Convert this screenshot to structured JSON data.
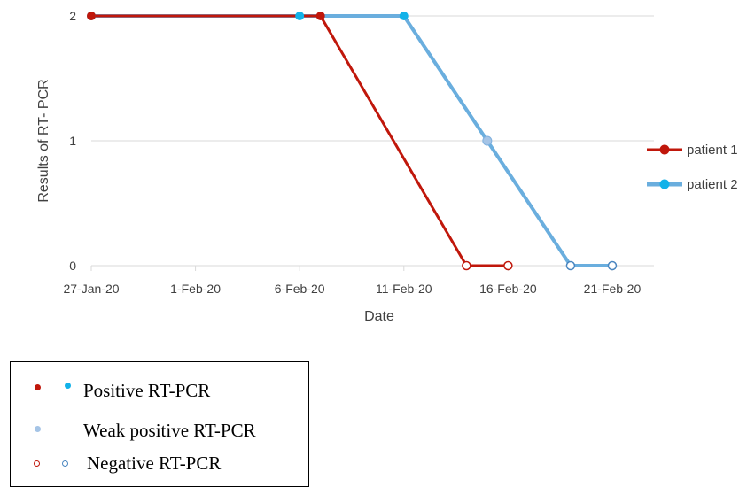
{
  "chart_data": {
    "type": "line",
    "xlabel": "Date",
    "ylabel": "Results of RT- PCR",
    "xlim": [
      "2020-01-27",
      "2020-02-23"
    ],
    "ylim": [
      0,
      2
    ],
    "x_ticks": [
      "27-Jan-20",
      "1-Feb-20",
      "6-Feb-20",
      "11-Feb-20",
      "16-Feb-20",
      "21-Feb-20"
    ],
    "x_tick_dates": [
      "2020-01-27",
      "2020-02-01",
      "2020-02-06",
      "2020-02-11",
      "2020-02-16",
      "2020-02-21"
    ],
    "y_ticks": [
      "0",
      "1",
      "2"
    ],
    "grid": true,
    "legend_position": "right",
    "series": [
      {
        "name": "patient 1",
        "color": "#c0170b",
        "points": [
          {
            "x": "2020-01-27",
            "y": 2,
            "result": "positive"
          },
          {
            "x": "2020-02-07",
            "y": 2,
            "result": "positive"
          },
          {
            "x": "2020-02-14",
            "y": 0,
            "result": "negative"
          },
          {
            "x": "2020-02-16",
            "y": 0,
            "result": "negative"
          }
        ]
      },
      {
        "name": "patient 2",
        "color": "#6aaede",
        "points": [
          {
            "x": "2020-01-27",
            "y": 2,
            "result": "positive"
          },
          {
            "x": "2020-02-06",
            "y": 2,
            "result": "positive"
          },
          {
            "x": "2020-02-11",
            "y": 2,
            "result": "positive"
          },
          {
            "x": "2020-02-15",
            "y": 1,
            "result": "weak positive"
          },
          {
            "x": "2020-02-19",
            "y": 0,
            "result": "negative"
          },
          {
            "x": "2020-02-21",
            "y": 0,
            "result": "negative"
          }
        ]
      }
    ],
    "marker_colors": {
      "positive_p1": "#c0170b",
      "positive_p2": "#12b2e9",
      "weak_positive": "#a5c4e6",
      "negative_p1": "#c0170b",
      "negative_p2": "#4a86c0"
    }
  },
  "key": {
    "positive": "Positive RT-PCR",
    "weak_positive": "Weak positive RT-PCR",
    "negative": "Negative RT-PCR"
  }
}
